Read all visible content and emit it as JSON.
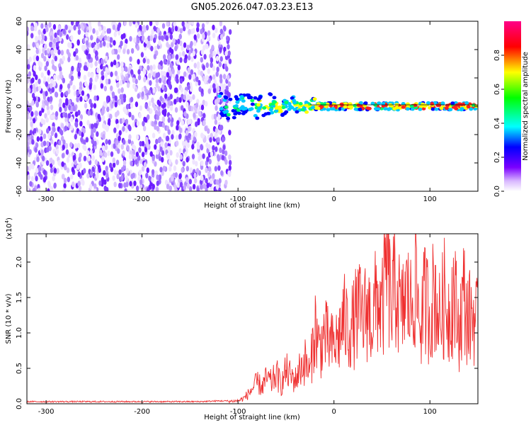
{
  "title": "GN05.2026.047.03.23.E13",
  "colors": {
    "spectrogram_low": "#f0e6ff",
    "spectrogram_mid": "#7a2cff",
    "snr_line": "#ef3030",
    "colorbar_stops": [
      "#ffffff",
      "#7b00ff",
      "#0000ff",
      "#00ffff",
      "#00ff00",
      "#ffff00",
      "#ff0000",
      "#ff00aa"
    ]
  },
  "chart_data": [
    {
      "type": "heatmap",
      "xlabel": "Height of straight line (km)",
      "ylabel": "Frequency (Hz)",
      "xlim": [
        -320,
        150
      ],
      "ylim": [
        -60,
        60
      ],
      "xticks": [
        -300,
        -200,
        -100,
        0,
        100
      ],
      "yticks": [
        60,
        40,
        20,
        0,
        -20,
        -40,
        -60
      ],
      "colorbar": {
        "label": "Normalized spectral amplitude",
        "range": [
          0,
          1
        ],
        "ticks": [
          "0.0",
          "0.2",
          "0.4",
          "0.6",
          "0.8"
        ]
      },
      "regions": [
        {
          "x_range": [
            -320,
            -108
          ],
          "y_range": [
            -60,
            60
          ],
          "amplitude": "0.0-0.2",
          "pattern": "broadband noise"
        },
        {
          "x_range": [
            -120,
            -20
          ],
          "y_center": 0,
          "y_halfwidth": [
            8,
            4
          ],
          "amplitude": "0.2-0.6",
          "pattern": "narrow band"
        },
        {
          "x_range": [
            -20,
            150
          ],
          "y_center": 0,
          "y_halfwidth": 2,
          "amplitude": "0.6-1.0",
          "pattern": "narrow band"
        }
      ]
    },
    {
      "type": "line",
      "xlabel": "Height of straight line (km)",
      "ylabel": "SNR (10 * v/v)",
      "y_multiplier": "(x10^4)",
      "xlim": [
        -320,
        150
      ],
      "ylim": [
        0,
        2.4
      ],
      "xticks": [
        -300,
        -200,
        -100,
        0,
        100
      ],
      "yticks": [
        "0.0",
        "0.5",
        "1.0",
        "1.5",
        "2.0"
      ],
      "series": [
        {
          "x": [
            -320,
            -300,
            -280,
            -260,
            -240,
            -220,
            -200,
            -180,
            -160,
            -140,
            -120,
            -110,
            -100,
            -95,
            -90,
            -85,
            -80,
            -75,
            -70,
            -65,
            -60,
            -55,
            -50,
            -45,
            -40,
            -35,
            -30,
            -25,
            -20,
            -15,
            -10,
            -5,
            0,
            5,
            10,
            15,
            20,
            25,
            30,
            35,
            40,
            45,
            50,
            55,
            60,
            65,
            70,
            75,
            80,
            85,
            90,
            95,
            100,
            105,
            110,
            115,
            120,
            125,
            130,
            135,
            140,
            145,
            150
          ],
          "values": [
            0.03,
            0.03,
            0.03,
            0.03,
            0.03,
            0.03,
            0.03,
            0.03,
            0.03,
            0.03,
            0.04,
            0.04,
            0.05,
            0.08,
            0.15,
            0.25,
            0.35,
            0.28,
            0.42,
            0.35,
            0.5,
            0.3,
            0.55,
            0.45,
            0.4,
            0.6,
            0.7,
            0.5,
            1.3,
            0.9,
            1.15,
            1.0,
            0.95,
            1.1,
            1.4,
            1.25,
            1.3,
            1.55,
            1.4,
            1.6,
            1.35,
            1.8,
            1.5,
            2.3,
            1.6,
            2.05,
            1.4,
            1.85,
            1.6,
            2.05,
            1.3,
            1.75,
            1.5,
            1.9,
            1.4,
            1.75,
            1.5,
            1.9,
            1.2,
            1.8,
            1.4,
            1.5,
            1.3
          ]
        }
      ]
    }
  ]
}
